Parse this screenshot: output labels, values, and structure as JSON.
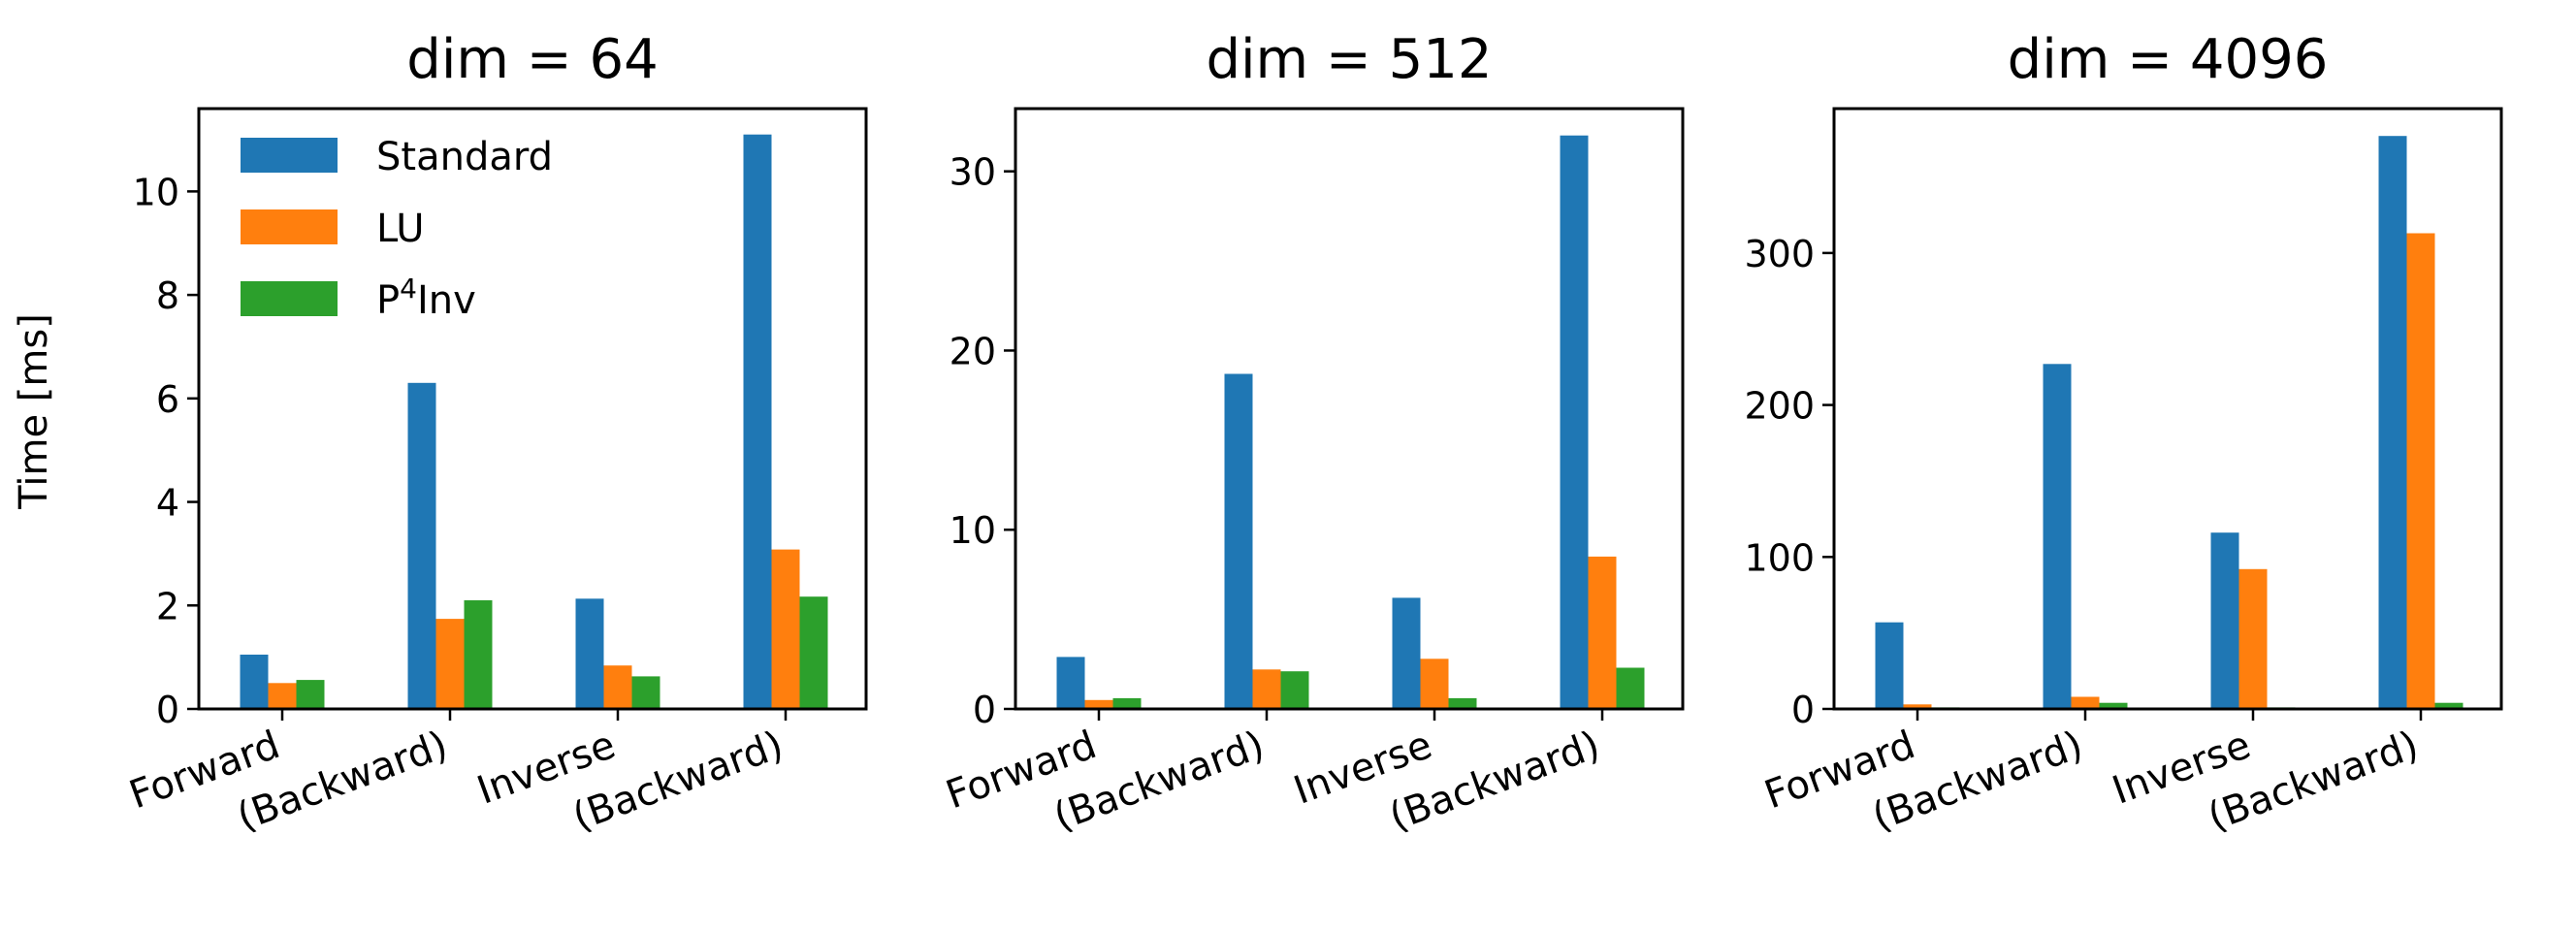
{
  "figure": {
    "ylabel": "Time [ms]",
    "legend": {
      "location": "upper-left",
      "entries": [
        {
          "label": "Standard",
          "color": "#1f77b4"
        },
        {
          "label": "LU",
          "color": "#ff7f0e"
        },
        {
          "label": "P⁴Inv",
          "label_base": "P",
          "label_sup": "4",
          "label_tail": "Inv",
          "color": "#2ca02c"
        }
      ]
    }
  },
  "chart_data": [
    {
      "type": "bar",
      "title": "dim = 64",
      "categories": [
        "Forward",
        "(Backward)",
        "Inverse",
        "(Backward)"
      ],
      "ylim": [
        0,
        11.6
      ],
      "yticks": [
        0,
        2,
        4,
        6,
        8,
        10
      ],
      "grid": false,
      "series": [
        {
          "name": "Standard",
          "color": "#1f77b4",
          "values": [
            1.05,
            6.3,
            2.13,
            11.1
          ]
        },
        {
          "name": "LU",
          "color": "#ff7f0e",
          "values": [
            0.5,
            1.74,
            0.84,
            3.08
          ]
        },
        {
          "name": "P⁴Inv",
          "color": "#2ca02c",
          "values": [
            0.56,
            2.1,
            0.63,
            2.17
          ]
        }
      ]
    },
    {
      "type": "bar",
      "title": "dim = 512",
      "categories": [
        "Forward",
        "(Backward)",
        "Inverse",
        "(Backward)"
      ],
      "ylim": [
        0,
        33.5
      ],
      "yticks": [
        0,
        10,
        20,
        30
      ],
      "grid": false,
      "series": [
        {
          "name": "Standard",
          "color": "#1f77b4",
          "values": [
            2.9,
            18.7,
            6.2,
            32.0
          ]
        },
        {
          "name": "LU",
          "color": "#ff7f0e",
          "values": [
            0.5,
            2.2,
            2.8,
            8.5
          ]
        },
        {
          "name": "P⁴Inv",
          "color": "#2ca02c",
          "values": [
            0.6,
            2.1,
            0.6,
            2.3
          ]
        }
      ]
    },
    {
      "type": "bar",
      "title": "dim = 4096",
      "categories": [
        "Forward",
        "(Backward)",
        "Inverse",
        "(Backward)"
      ],
      "ylim": [
        0,
        395
      ],
      "yticks": [
        0,
        100,
        200,
        300
      ],
      "grid": false,
      "series": [
        {
          "name": "Standard",
          "color": "#1f77b4",
          "values": [
            57,
            227,
            116,
            377
          ]
        },
        {
          "name": "LU",
          "color": "#ff7f0e",
          "values": [
            3,
            8,
            92,
            313
          ]
        },
        {
          "name": "P⁴Inv",
          "color": "#2ca02c",
          "values": [
            1,
            4,
            1,
            4
          ]
        }
      ]
    }
  ]
}
